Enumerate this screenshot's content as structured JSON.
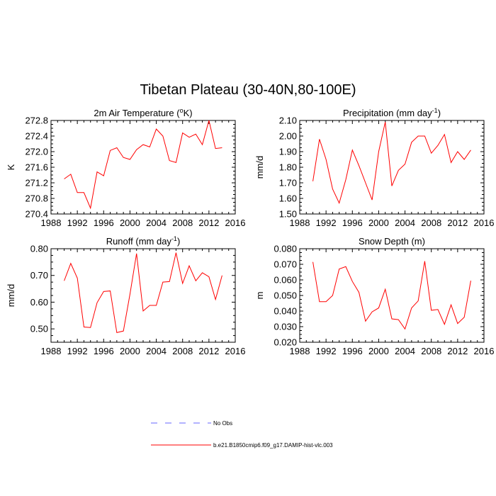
{
  "title": "Tibetan Plateau (30-40N,80-100E)",
  "legend": [
    {
      "label": "No Obs",
      "color": "#6666ff",
      "style": "dashed"
    },
    {
      "label": "b.e21.B1850cmip6.f09_g17.DAMIP-hist-vlc.003",
      "color": "#ff0000",
      "style": "solid"
    }
  ],
  "chart_data": [
    {
      "type": "line",
      "title_main": "2m Air Temperature (",
      "title_sup": "o",
      "title_tail": "K)",
      "ylabel": "K",
      "xlabel": "",
      "xlim": [
        1988,
        2016
      ],
      "ylim": [
        270.4,
        272.8
      ],
      "xticks": [
        "1988",
        "1992",
        "1996",
        "2000",
        "2004",
        "2008",
        "2012",
        "2016"
      ],
      "yticks": [
        "270.4",
        "270.8",
        "271.2",
        "271.6",
        "272.0",
        "272.4",
        "272.8"
      ],
      "x": [
        1990,
        1991,
        1992,
        1993,
        1994,
        1995,
        1996,
        1997,
        1998,
        1999,
        2000,
        2001,
        2002,
        2003,
        2004,
        2005,
        2006,
        2007,
        2008,
        2009,
        2010,
        2011,
        2012,
        2013,
        2014
      ],
      "series": [
        {
          "values": [
            271.3,
            271.42,
            270.95,
            270.95,
            270.55,
            271.48,
            271.38,
            272.03,
            272.1,
            271.85,
            271.8,
            272.05,
            272.18,
            272.12,
            272.58,
            272.4,
            271.77,
            271.72,
            272.48,
            272.37,
            272.45,
            272.18,
            272.8,
            272.08,
            272.1
          ],
          "color": "#ff0000"
        }
      ]
    },
    {
      "type": "line",
      "title_main": "Precipitation (mm day",
      "title_sup": "-1",
      "title_tail": ")",
      "ylabel": "mm/d",
      "xlabel": "",
      "xlim": [
        1988,
        2016
      ],
      "ylim": [
        1.5,
        2.1
      ],
      "xticks": [
        "1988",
        "1992",
        "1996",
        "2000",
        "2004",
        "2008",
        "2012",
        "2016"
      ],
      "yticks": [
        "1.50",
        "1.60",
        "1.70",
        "1.80",
        "1.90",
        "2.00",
        "2.10"
      ],
      "x": [
        1990,
        1991,
        1992,
        1993,
        1994,
        1995,
        1996,
        1997,
        1998,
        1999,
        2000,
        2001,
        2002,
        2003,
        2004,
        2005,
        2006,
        2007,
        2008,
        2009,
        2010,
        2011,
        2012,
        2013,
        2014
      ],
      "series": [
        {
          "values": [
            1.71,
            1.98,
            1.85,
            1.66,
            1.57,
            1.72,
            1.91,
            1.81,
            1.7,
            1.59,
            1.9,
            2.09,
            1.68,
            1.78,
            1.82,
            1.96,
            2.0,
            2.0,
            1.89,
            1.94,
            2.01,
            1.83,
            1.9,
            1.85,
            1.91
          ],
          "color": "#ff0000"
        }
      ]
    },
    {
      "type": "line",
      "title_main": "Runoff (mm day",
      "title_sup": "-1",
      "title_tail": ")",
      "ylabel": "mm/d",
      "xlabel": "",
      "xlim": [
        1988,
        2016
      ],
      "ylim": [
        0.45,
        0.8
      ],
      "xticks": [
        "1988",
        "1992",
        "1996",
        "2000",
        "2004",
        "2008",
        "2012",
        "2016"
      ],
      "yticks": [
        "0.50",
        "0.60",
        "0.70",
        "0.80"
      ],
      "x": [
        1990,
        1991,
        1992,
        1993,
        1994,
        1995,
        1996,
        1997,
        1998,
        1999,
        2000,
        2001,
        2002,
        2003,
        2004,
        2005,
        2006,
        2007,
        2008,
        2009,
        2010,
        2011,
        2012,
        2013,
        2014
      ],
      "series": [
        {
          "values": [
            0.68,
            0.745,
            0.69,
            0.507,
            0.505,
            0.598,
            0.64,
            0.642,
            0.486,
            0.492,
            0.63,
            0.782,
            0.567,
            0.588,
            0.588,
            0.675,
            0.677,
            0.785,
            0.67,
            0.736,
            0.68,
            0.71,
            0.695,
            0.61,
            0.7
          ],
          "color": "#ff0000"
        }
      ]
    },
    {
      "type": "line",
      "title_main": "Snow Depth (m)",
      "title_sup": "",
      "title_tail": "",
      "ylabel": "m",
      "xlabel": "",
      "xlim": [
        1988,
        2016
      ],
      "ylim": [
        0.02,
        0.08
      ],
      "xticks": [
        "1988",
        "1992",
        "1996",
        "2000",
        "2004",
        "2008",
        "2012",
        "2016"
      ],
      "yticks": [
        "0.020",
        "0.030",
        "0.040",
        "0.050",
        "0.060",
        "0.070",
        "0.080"
      ],
      "x": [
        1990,
        1991,
        1992,
        1993,
        1994,
        1995,
        1996,
        1997,
        1998,
        1999,
        2000,
        2001,
        2002,
        2003,
        2004,
        2005,
        2006,
        2007,
        2008,
        2009,
        2010,
        2011,
        2012,
        2013,
        2014
      ],
      "series": [
        {
          "values": [
            0.0715,
            0.046,
            0.046,
            0.05,
            0.067,
            0.0685,
            0.059,
            0.052,
            0.0335,
            0.0395,
            0.042,
            0.054,
            0.035,
            0.0345,
            0.0285,
            0.042,
            0.0465,
            0.072,
            0.0405,
            0.041,
            0.0315,
            0.044,
            0.032,
            0.036,
            0.0595
          ],
          "color": "#ff0000"
        }
      ]
    }
  ]
}
